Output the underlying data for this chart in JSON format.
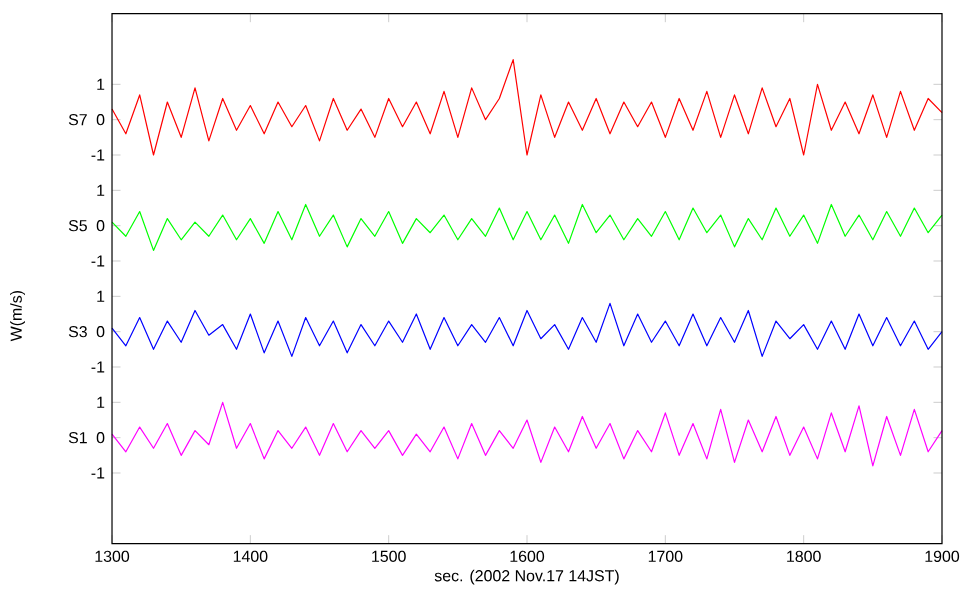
{
  "chart_data": [
    {
      "type": "line",
      "tick_labels": "y",
      "x": [
        1300,
        1310,
        1320,
        1330,
        1340,
        1350,
        1360,
        1370,
        1380,
        1390,
        1400,
        1410,
        1420,
        1430,
        1440,
        1450,
        1460,
        1470,
        1480,
        1490,
        1500,
        1510,
        1520,
        1530,
        1540,
        1550,
        1560,
        1570,
        1580,
        1590,
        1600,
        1610,
        1620,
        1630,
        1640,
        1650,
        1660,
        1670,
        1680,
        1690,
        1700,
        1710,
        1720,
        1730,
        1740,
        1750,
        1760,
        1770,
        1780,
        1790,
        1800,
        1810,
        1820,
        1830,
        1840,
        1850,
        1860,
        1870,
        1880,
        1890,
        1900
      ],
      "xlim": [
        1300,
        1900
      ],
      "xticks": [
        1300,
        1400,
        1500,
        1600,
        1700,
        1800,
        1900
      ],
      "ylim": [
        -1,
        3
      ],
      "yticks": [
        -1,
        0,
        1
      ],
      "series": [
        {
          "name": "S7",
          "color": "#ff0000",
          "values": [
            0.3,
            -0.4,
            0.7,
            -1.0,
            0.5,
            -0.5,
            0.9,
            -0.6,
            0.6,
            -0.3,
            0.4,
            -0.4,
            0.5,
            -0.2,
            0.4,
            -0.6,
            0.6,
            -0.3,
            0.3,
            -0.5,
            0.6,
            -0.2,
            0.5,
            -0.4,
            0.8,
            -0.5,
            0.9,
            0.0,
            0.6,
            1.7,
            -1.0,
            0.7,
            -0.5,
            0.5,
            -0.3,
            0.6,
            -0.4,
            0.5,
            -0.2,
            0.5,
            -0.5,
            0.6,
            -0.3,
            0.8,
            -0.5,
            0.7,
            -0.4,
            0.9,
            -0.2,
            0.6,
            -1.0,
            1.0,
            -0.3,
            0.5,
            -0.4,
            0.7,
            -0.5,
            0.8,
            -0.3,
            0.6,
            0.2
          ]
        }
      ]
    },
    {
      "type": "line",
      "tick_labels": "y",
      "x": [
        1300,
        1310,
        1320,
        1330,
        1340,
        1350,
        1360,
        1370,
        1380,
        1390,
        1400,
        1410,
        1420,
        1430,
        1440,
        1450,
        1460,
        1470,
        1480,
        1490,
        1500,
        1510,
        1520,
        1530,
        1540,
        1550,
        1560,
        1570,
        1580,
        1590,
        1600,
        1610,
        1620,
        1630,
        1640,
        1650,
        1660,
        1670,
        1680,
        1690,
        1700,
        1710,
        1720,
        1730,
        1740,
        1750,
        1760,
        1770,
        1780,
        1790,
        1800,
        1810,
        1820,
        1830,
        1840,
        1850,
        1860,
        1870,
        1880,
        1890,
        1900
      ],
      "xlim": [
        1300,
        1900
      ],
      "ylim": [
        -1,
        1
      ],
      "yticks": [
        -1,
        0,
        1
      ],
      "series": [
        {
          "name": "S5",
          "color": "#00ff00",
          "values": [
            0.1,
            -0.3,
            0.4,
            -0.7,
            0.2,
            -0.4,
            0.1,
            -0.3,
            0.3,
            -0.4,
            0.2,
            -0.5,
            0.4,
            -0.4,
            0.6,
            -0.3,
            0.3,
            -0.6,
            0.2,
            -0.3,
            0.4,
            -0.5,
            0.2,
            -0.2,
            0.3,
            -0.4,
            0.2,
            -0.3,
            0.5,
            -0.4,
            0.4,
            -0.4,
            0.3,
            -0.5,
            0.6,
            -0.2,
            0.3,
            -0.4,
            0.2,
            -0.3,
            0.4,
            -0.4,
            0.5,
            -0.2,
            0.3,
            -0.6,
            0.2,
            -0.4,
            0.5,
            -0.3,
            0.3,
            -0.5,
            0.6,
            -0.3,
            0.3,
            -0.4,
            0.4,
            -0.3,
            0.5,
            -0.2,
            0.3
          ]
        }
      ]
    },
    {
      "type": "line",
      "tick_labels": "y",
      "ylabel": "W(m/s)",
      "x": [
        1300,
        1310,
        1320,
        1330,
        1340,
        1350,
        1360,
        1370,
        1380,
        1390,
        1400,
        1410,
        1420,
        1430,
        1440,
        1450,
        1460,
        1470,
        1480,
        1490,
        1500,
        1510,
        1520,
        1530,
        1540,
        1550,
        1560,
        1570,
        1580,
        1590,
        1600,
        1610,
        1620,
        1630,
        1640,
        1650,
        1660,
        1670,
        1680,
        1690,
        1700,
        1710,
        1720,
        1730,
        1740,
        1750,
        1760,
        1770,
        1780,
        1790,
        1800,
        1810,
        1820,
        1830,
        1840,
        1850,
        1860,
        1870,
        1880,
        1890,
        1900
      ],
      "xlim": [
        1300,
        1900
      ],
      "ylim": [
        -1,
        1
      ],
      "yticks": [
        -1,
        0,
        1
      ],
      "series": [
        {
          "name": "S3",
          "color": "#0000ff",
          "values": [
            0.1,
            -0.4,
            0.4,
            -0.5,
            0.3,
            -0.3,
            0.6,
            -0.1,
            0.2,
            -0.5,
            0.5,
            -0.6,
            0.3,
            -0.7,
            0.4,
            -0.4,
            0.3,
            -0.6,
            0.2,
            -0.4,
            0.3,
            -0.3,
            0.5,
            -0.5,
            0.4,
            -0.4,
            0.2,
            -0.3,
            0.4,
            -0.4,
            0.6,
            -0.2,
            0.2,
            -0.5,
            0.4,
            -0.3,
            0.8,
            -0.4,
            0.5,
            -0.3,
            0.3,
            -0.4,
            0.5,
            -0.4,
            0.4,
            -0.3,
            0.6,
            -0.7,
            0.3,
            -0.2,
            0.2,
            -0.5,
            0.3,
            -0.5,
            0.5,
            -0.4,
            0.4,
            -0.4,
            0.3,
            -0.5,
            0.0
          ]
        }
      ]
    },
    {
      "type": "line",
      "xlabel": "sec. (2002 Nov.17 14JST)",
      "x": [
        1300,
        1310,
        1320,
        1330,
        1340,
        1350,
        1360,
        1370,
        1380,
        1390,
        1400,
        1410,
        1420,
        1430,
        1440,
        1450,
        1460,
        1470,
        1480,
        1490,
        1500,
        1510,
        1520,
        1530,
        1540,
        1550,
        1560,
        1570,
        1580,
        1590,
        1600,
        1610,
        1620,
        1630,
        1640,
        1650,
        1660,
        1670,
        1680,
        1690,
        1700,
        1710,
        1720,
        1730,
        1740,
        1750,
        1760,
        1770,
        1780,
        1790,
        1800,
        1810,
        1820,
        1830,
        1840,
        1850,
        1860,
        1870,
        1880,
        1890,
        1900
      ],
      "xlim": [
        1300,
        1900
      ],
      "xticks": [
        1300,
        1400,
        1500,
        1600,
        1700,
        1800,
        1900
      ],
      "ylim": [
        -3,
        1
      ],
      "yticks": [
        -1,
        0,
        1
      ],
      "series": [
        {
          "name": "S1",
          "color": "#ff00ff",
          "values": [
            0.1,
            -0.4,
            0.3,
            -0.3,
            0.4,
            -0.5,
            0.2,
            -0.2,
            1.0,
            -0.3,
            0.4,
            -0.6,
            0.2,
            -0.3,
            0.3,
            -0.5,
            0.4,
            -0.4,
            0.2,
            -0.3,
            0.2,
            -0.5,
            0.1,
            -0.4,
            0.3,
            -0.6,
            0.4,
            -0.5,
            0.2,
            -0.3,
            0.5,
            -0.7,
            0.3,
            -0.4,
            0.6,
            -0.3,
            0.4,
            -0.6,
            0.2,
            -0.4,
            0.7,
            -0.5,
            0.4,
            -0.6,
            0.8,
            -0.7,
            0.5,
            -0.4,
            0.6,
            -0.5,
            0.3,
            -0.6,
            0.7,
            -0.4,
            0.9,
            -0.8,
            0.6,
            -0.5,
            0.8,
            -0.4,
            0.2
          ]
        }
      ]
    }
  ]
}
